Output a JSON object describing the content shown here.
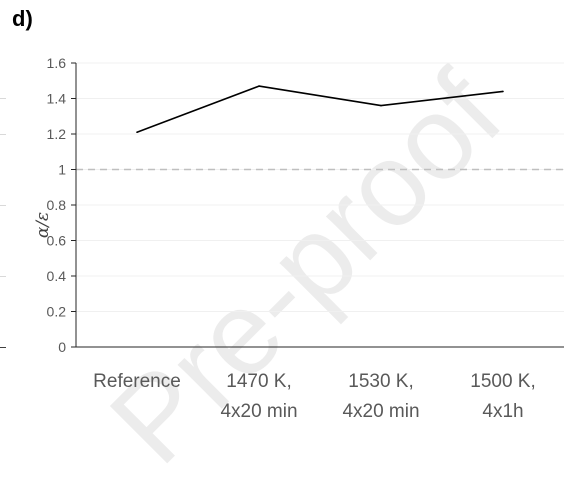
{
  "panel_label": "d)",
  "watermark": "Pre-proof",
  "colors": {
    "line": "#000000",
    "axis": "#262626",
    "grid": "#f0f0f0",
    "reference_line": "#bfbfbf",
    "tick_text": "#595959"
  },
  "chart_data": {
    "type": "line",
    "title": "",
    "xlabel": "",
    "ylabel": "α/ε",
    "categories": [
      [
        "Reference"
      ],
      [
        "1470 K,",
        "4x20 min"
      ],
      [
        "1530 K,",
        "4x20 min"
      ],
      [
        "1500 K,",
        "4x1h"
      ]
    ],
    "series": [
      {
        "values": [
          1.21,
          1.47,
          1.36,
          1.44
        ]
      }
    ],
    "ylim": [
      0,
      1.6
    ],
    "yticks": [
      0,
      0.2,
      0.4,
      0.6,
      0.8,
      1,
      1.2,
      1.4,
      1.6
    ],
    "ytick_labels": [
      "0",
      "0.2",
      "0.4",
      "0.6",
      "0.8",
      "1",
      "1.2",
      "1.4",
      "1.6"
    ],
    "reference_line": {
      "y": 1,
      "style": "dashed"
    },
    "grid": true,
    "legend": "none"
  }
}
